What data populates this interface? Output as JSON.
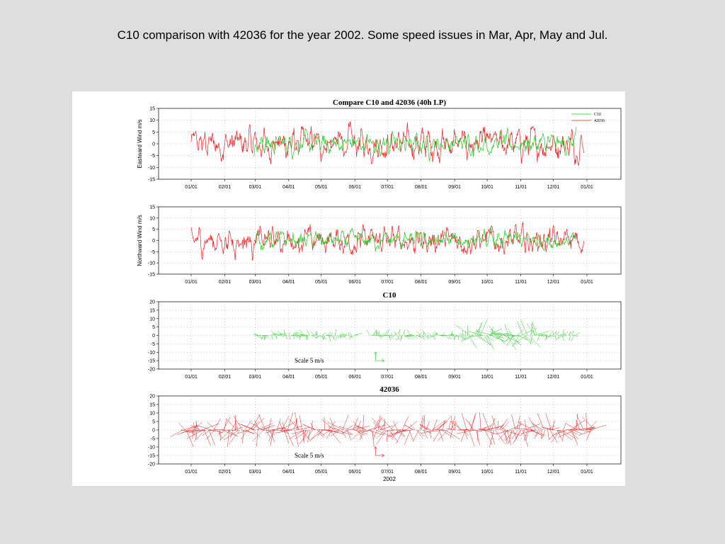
{
  "slide": {
    "title": "C10 comparison with 42036 for the year 2002. Some speed issues in Mar, Apr, May and Jul."
  },
  "colors": {
    "c10": "#22cc22",
    "buoy": "#ee2222",
    "grid": "#999999"
  },
  "chart_data": [
    {
      "type": "line",
      "title": "Compare C10 and 42036 (40h LP)",
      "ylabel": "Eastward Wind m/s",
      "ylim": [
        -15,
        15
      ],
      "yticks": [
        15,
        10,
        5,
        0,
        -5,
        -10,
        -15
      ],
      "xticks": [
        "01/01",
        "02/01",
        "03/01",
        "04/01",
        "05/01",
        "06/01",
        "07/01",
        "08/01",
        "09/01",
        "10/01",
        "11/01",
        "12/01",
        "01/01"
      ],
      "legend": {
        "placement": "top-right",
        "entries": [
          "C10",
          "42036"
        ]
      },
      "grid": true,
      "series": [
        {
          "name": "C10",
          "color": "#22cc22",
          "x_range_days": [
            58,
            355
          ],
          "amplitude": 4
        },
        {
          "name": "42036",
          "color": "#ee2222",
          "x_range_days": [
            0,
            362
          ],
          "amplitude": 6
        }
      ]
    },
    {
      "type": "line",
      "title": "",
      "ylabel": "Northward Wind m/s",
      "ylim": [
        -15,
        15
      ],
      "yticks": [
        15,
        10,
        5,
        0,
        -5,
        -10,
        -15
      ],
      "xticks": [
        "01/01",
        "02/01",
        "03/01",
        "04/01",
        "05/01",
        "06/01",
        "07/01",
        "08/01",
        "09/01",
        "10/01",
        "11/01",
        "12/01",
        "01/01"
      ],
      "grid": true,
      "series": [
        {
          "name": "C10",
          "color": "#22cc22",
          "x_range_days": [
            58,
            355
          ],
          "amplitude": 3.5
        },
        {
          "name": "42036",
          "color": "#ee2222",
          "x_range_days": [
            0,
            362
          ],
          "amplitude": 5.5
        }
      ]
    },
    {
      "type": "stick",
      "title": "C10",
      "ylim": [
        -20,
        20
      ],
      "yticks": [
        20,
        15,
        10,
        5,
        0,
        -5,
        -10,
        -15,
        -20
      ],
      "xticks": [
        "01/01",
        "02/01",
        "03/01",
        "04/01",
        "05/01",
        "06/01",
        "07/01",
        "08/01",
        "09/01",
        "10/01",
        "11/01",
        "12/01",
        "01/01"
      ],
      "grid": true,
      "scale_label": "Scale 5 m/s",
      "color": "#22cc22",
      "segments_days": [
        [
          60,
          152
        ],
        [
          165,
          355
        ]
      ]
    },
    {
      "type": "stick",
      "title": "42036",
      "ylim": [
        -20,
        20
      ],
      "yticks": [
        20,
        15,
        10,
        5,
        0,
        -5,
        -10,
        -15,
        -20
      ],
      "xticks": [
        "01/01",
        "02/01",
        "03/01",
        "04/01",
        "05/01",
        "06/01",
        "07/01",
        "08/01",
        "09/01",
        "10/01",
        "11/01",
        "12/01",
        "01/01"
      ],
      "xlabel": "2002",
      "grid": true,
      "scale_label": "Scale 5 m/s",
      "color": "#ee2222",
      "segments_days": [
        [
          -10,
          372
        ]
      ]
    }
  ]
}
